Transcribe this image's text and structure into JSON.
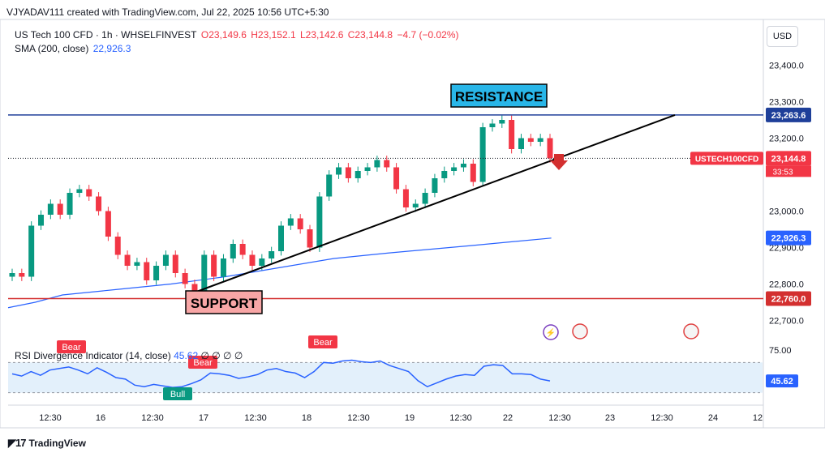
{
  "caption": "VJYADAV111 created with TradingView.com, Jul 22, 2025 10:56 UTC+5:30",
  "legend": {
    "symbol": "US Tech 100 CFD · 1h · WHSELFINVEST",
    "open": "O23,149.6",
    "high": "H23,152.1",
    "low": "L23,142.6",
    "close": "C23,144.8",
    "change": "−4.7 (−0.02%)",
    "sma_label": "SMA (200, close)",
    "sma_value": "22,926.3"
  },
  "rsi_legend": {
    "label": "RSI Divergence Indicator (14, close)",
    "value": "45.62",
    "extra": "∅ ∅ ∅ ∅"
  },
  "currency": "USD",
  "footer": "TradingView",
  "colors": {
    "up": "#089981",
    "down": "#f23645",
    "sma": "#2962ff",
    "resistance": "#1e3f99",
    "support": "#d32f2f",
    "rsi_fill": "#e3f0fb"
  },
  "chart_data": {
    "type": "candlestick",
    "title": "US Tech 100 CFD · 1h · WHSELFINVEST",
    "ylim": [
      22650,
      23450
    ],
    "y_ticks": [
      "23,400.0",
      "23,300.0",
      "23,200.0",
      "23,000.0",
      "22,900.0",
      "22,800.0",
      "22,700.0"
    ],
    "x_ticks": [
      "12:30",
      "16",
      "12:30",
      "17",
      "12:30",
      "18",
      "12:30",
      "19",
      "12:30",
      "22",
      "12:30",
      "23",
      "12:30",
      "24",
      "12"
    ],
    "price_labels": [
      {
        "text": "23,263.6",
        "value": 23263.6,
        "color": "#1e3f99"
      },
      {
        "text": "23,144.8",
        "value": 23144.8,
        "color": "#f23645",
        "countdown": "33:53",
        "tag": "USTECH100CFD"
      },
      {
        "text": "22,926.3",
        "value": 22926.3,
        "color": "#2962ff"
      },
      {
        "text": "22,760.0",
        "value": 22760.0,
        "color": "#d32f2f"
      }
    ],
    "resistance": {
      "label": "RESISTANCE",
      "value": 23263.6
    },
    "support": {
      "label": "SUPPORT",
      "value": 22760.0
    },
    "trendline": {
      "from": [
        22760,
        0.227
      ],
      "to": [
        23263.6,
        0.83
      ]
    },
    "close_path": [
      22830,
      22820,
      22960,
      22990,
      23020,
      22990,
      23050,
      23060,
      23040,
      23000,
      22930,
      22880,
      22850,
      22860,
      22810,
      22850,
      22880,
      22830,
      22800,
      22780,
      22880,
      22820,
      22870,
      22910,
      22880,
      22850,
      22870,
      22890,
      22960,
      22980,
      22950,
      22900,
      23040,
      23100,
      23120,
      23090,
      23110,
      23120,
      23140,
      23120,
      23060,
      23010,
      23020,
      23050,
      23090,
      23110,
      23120,
      23130,
      23080,
      23230,
      23240,
      23250,
      23170,
      23200,
      23190,
      23200,
      23144.8
    ],
    "sma": [
      [
        0,
        22735
      ],
      [
        0.05,
        22750
      ],
      [
        0.1,
        22770
      ],
      [
        0.2,
        22785
      ],
      [
        0.3,
        22800
      ],
      [
        0.4,
        22820
      ],
      [
        0.5,
        22845
      ],
      [
        0.6,
        22870
      ],
      [
        0.7,
        22885
      ],
      [
        0.85,
        22905
      ],
      [
        1,
        22926
      ]
    ],
    "rsi": {
      "ylim": [
        20,
        80
      ],
      "ticks": [
        "75.00",
        "45.62"
      ],
      "upper": 70,
      "lower": 30,
      "values": [
        55,
        52,
        58,
        53,
        60,
        62,
        64,
        60,
        55,
        63,
        57,
        50,
        48,
        40,
        38,
        41,
        39,
        37,
        38,
        42,
        47,
        56,
        55,
        53,
        49,
        51,
        54,
        60,
        62,
        58,
        56,
        50,
        58,
        70,
        69,
        72,
        73,
        71,
        70,
        72,
        66,
        62,
        58,
        46,
        38,
        43,
        48,
        52,
        54,
        53,
        65,
        67,
        66,
        55,
        55,
        54,
        48,
        45.62
      ],
      "labels": [
        "Bear",
        "Bear",
        "Bear",
        "Bull"
      ]
    }
  }
}
